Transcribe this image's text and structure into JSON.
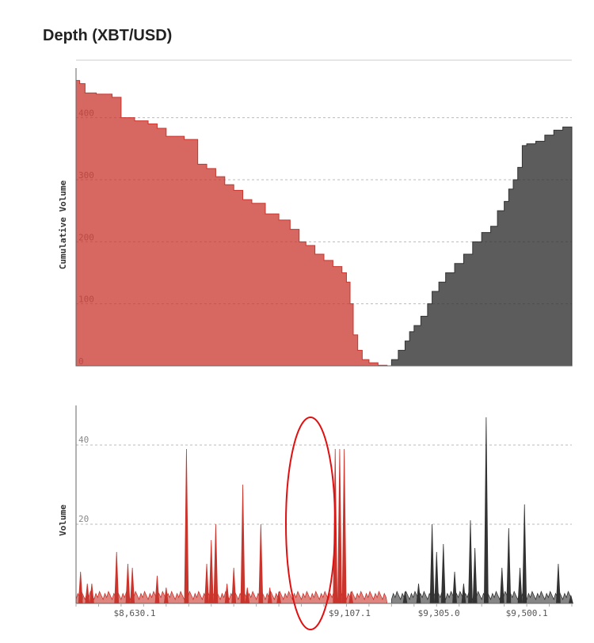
{
  "header": {
    "title": "Depth (XBT/USD)"
  },
  "colors": {
    "bids": "#c9342c",
    "asks": "#333333",
    "circle": "#e01010",
    "grid": "#bbbbbb",
    "axis": "#666666"
  },
  "chart_data": [
    {
      "type": "area",
      "ylabel": "Cumulative Volume",
      "ylim": [
        0,
        480
      ],
      "xlim": [
        8500,
        9600
      ],
      "y_ticks": [
        "0",
        "100",
        "200",
        "300",
        "400"
      ],
      "grid": true,
      "series": [
        {
          "x": [
            8500,
            8508,
            8520,
            8545,
            8580,
            8600,
            8630,
            8660,
            8680,
            8700,
            8740,
            8770,
            8790,
            8810,
            8830,
            8850,
            8870,
            8890,
            8920,
            8950,
            8975,
            8995,
            9010,
            9030,
            9050,
            9070,
            9090,
            9100,
            9108,
            9115,
            9125,
            9135,
            9150,
            9170,
            9190
          ],
          "y": [
            460,
            455,
            440,
            438,
            433,
            400,
            395,
            390,
            383,
            370,
            365,
            325,
            318,
            305,
            292,
            283,
            268,
            262,
            245,
            235,
            220,
            200,
            194,
            180,
            170,
            160,
            150,
            135,
            100,
            50,
            25,
            10,
            5,
            1,
            0
          ]
        },
        {
          "x": [
            9200,
            9215,
            9230,
            9240,
            9250,
            9265,
            9280,
            9290,
            9305,
            9320,
            9340,
            9360,
            9380,
            9400,
            9420,
            9435,
            9450,
            9460,
            9470,
            9480,
            9490,
            9500,
            9520,
            9540,
            9560,
            9580,
            9600
          ],
          "y": [
            0,
            10,
            25,
            40,
            55,
            65,
            80,
            100,
            120,
            135,
            150,
            165,
            180,
            200,
            215,
            225,
            250,
            265,
            285,
            300,
            320,
            355,
            358,
            362,
            372,
            380,
            385
          ]
        }
      ]
    },
    {
      "type": "area",
      "ylabel": "Volume",
      "ylim": [
        0,
        50
      ],
      "xlim": [
        8500,
        9600
      ],
      "y_ticks": [
        "0",
        "20",
        "40"
      ],
      "x_tick_labels": [
        {
          "value": 8630.1,
          "label": "$8,630.1"
        },
        {
          "value": 9107.1,
          "label": "$9,107.1"
        },
        {
          "value": 9305.0,
          "label": "$9,305.0"
        },
        {
          "value": 9500.1,
          "label": "$9,500.1"
        }
      ],
      "grid": true,
      "series": [
        {
          "spikes": [
            {
              "x": 8510,
              "y": 8
            },
            {
              "x": 8525,
              "y": 5
            },
            {
              "x": 8535,
              "y": 5
            },
            {
              "x": 8590,
              "y": 13
            },
            {
              "x": 8615,
              "y": 10
            },
            {
              "x": 8625,
              "y": 9
            },
            {
              "x": 8680,
              "y": 7
            },
            {
              "x": 8700,
              "y": 4
            },
            {
              "x": 8745,
              "y": 39
            },
            {
              "x": 8790,
              "y": 10
            },
            {
              "x": 8800,
              "y": 16
            },
            {
              "x": 8810,
              "y": 20
            },
            {
              "x": 8835,
              "y": 5
            },
            {
              "x": 8850,
              "y": 9
            },
            {
              "x": 8870,
              "y": 30
            },
            {
              "x": 8880,
              "y": 4
            },
            {
              "x": 8910,
              "y": 20
            },
            {
              "x": 8930,
              "y": 4
            },
            {
              "x": 8950,
              "y": 3
            },
            {
              "x": 9075,
              "y": 39
            },
            {
              "x": 9085,
              "y": 39
            },
            {
              "x": 9095,
              "y": 39
            },
            {
              "x": 9110,
              "y": 3
            }
          ]
        },
        {
          "spikes": [
            {
              "x": 9230,
              "y": 3
            },
            {
              "x": 9260,
              "y": 5
            },
            {
              "x": 9290,
              "y": 20
            },
            {
              "x": 9300,
              "y": 13
            },
            {
              "x": 9315,
              "y": 15
            },
            {
              "x": 9340,
              "y": 8
            },
            {
              "x": 9360,
              "y": 5
            },
            {
              "x": 9375,
              "y": 21
            },
            {
              "x": 9385,
              "y": 14
            },
            {
              "x": 9410,
              "y": 47
            },
            {
              "x": 9445,
              "y": 9
            },
            {
              "x": 9460,
              "y": 19
            },
            {
              "x": 9485,
              "y": 9
            },
            {
              "x": 9495,
              "y": 25
            },
            {
              "x": 9570,
              "y": 10
            },
            {
              "x": 9598,
              "y": 2
            }
          ]
        }
      ]
    }
  ]
}
